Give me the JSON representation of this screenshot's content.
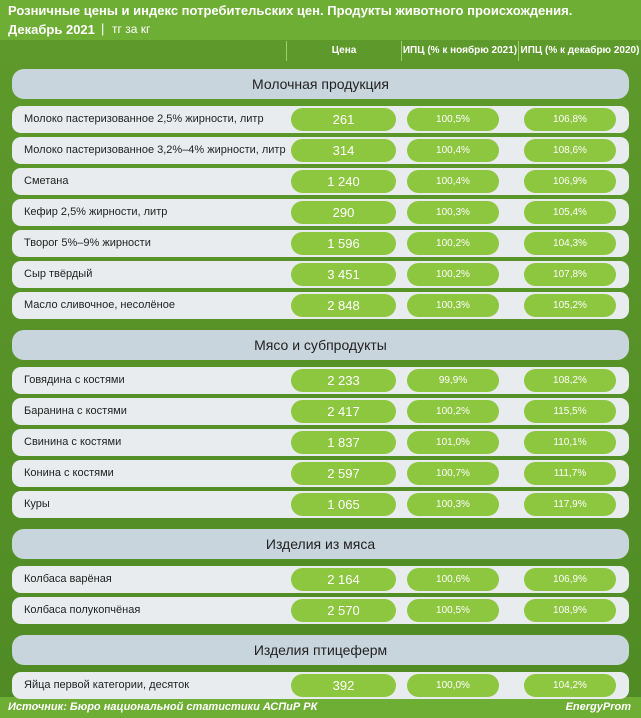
{
  "header": {
    "title": "Розничные цены и индекс потребительских цен. Продукты животного происхождения.",
    "date": "Декабрь 2021",
    "unit": "тг за кг"
  },
  "columns": [
    "Цена",
    "ИПЦ (% к ноябрю 2021)",
    "ИПЦ (% к декабрю 2020)"
  ],
  "sections": [
    {
      "title": "Молочная продукция",
      "rows": [
        [
          "Молоко пастеризованное 2,5% жирности, литр",
          "261",
          "100,5%",
          "106,8%"
        ],
        [
          "Молоко пастеризованное 3,2%–4% жирности, литр",
          "314",
          "100,4%",
          "108,6%"
        ],
        [
          "Сметана",
          "1 240",
          "100,4%",
          "106,9%"
        ],
        [
          "Кефир 2,5% жирности, литр",
          "290",
          "100,3%",
          "105,4%"
        ],
        [
          "Творог 5%–9% жирности",
          "1 596",
          "100,2%",
          "104,3%"
        ],
        [
          "Сыр твёрдый",
          "3 451",
          "100,2%",
          "107,8%"
        ],
        [
          "Масло сливочное, несолёное",
          "2 848",
          "100,3%",
          "105,2%"
        ]
      ]
    },
    {
      "title": "Мясо и субпродукты",
      "rows": [
        [
          "Говядина с костями",
          "2 233",
          "99,9%",
          "108,2%"
        ],
        [
          "Баранина с костями",
          "2 417",
          "100,2%",
          "115,5%"
        ],
        [
          "Свинина с костями",
          "1 837",
          "101,0%",
          "110,1%"
        ],
        [
          "Конина с костями",
          "2 597",
          "100,7%",
          "111,7%"
        ],
        [
          "Куры",
          "1 065",
          "100,3%",
          "117,9%"
        ]
      ]
    },
    {
      "title": "Изделия из мяса",
      "rows": [
        [
          "Колбаса варёная",
          "2 164",
          "100,6%",
          "106,9%"
        ],
        [
          "Колбаса полукопчёная",
          "2 570",
          "100,5%",
          "108,9%"
        ]
      ]
    },
    {
      "title": "Изделия птицеферм",
      "rows": [
        [
          "Яйца первой категории, десяток",
          "392",
          "100,0%",
          "104,2%"
        ]
      ]
    }
  ],
  "footer": {
    "source": "Источник: Бюро национальной статистики АСПиР РК",
    "brand": "EnergyProm"
  }
}
